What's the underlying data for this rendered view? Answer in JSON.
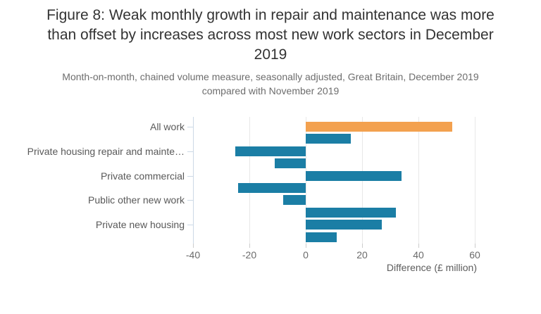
{
  "title": "Figure 8: Weak monthly growth in repair and maintenance was more than offset by increases across most new work sectors in December 2019",
  "subtitle": "Month-on-month, chained volume measure, seasonally adjusted, Great Britain, December 2019 compared with November 2019",
  "colors": {
    "highlight_bar": "#f3a14f",
    "bar": "#1b7ea5",
    "axis_line": "#ccd9e6",
    "gridline": "#e8e8e8",
    "title_text": "#333333",
    "subtitle_text": "#6d6d6d",
    "label_text": "#595959"
  },
  "chart_data": {
    "type": "bar",
    "orientation": "horizontal",
    "title": "Figure 8: Weak monthly growth in repair and maintenance was more than offset by increases across most new work sectors in December 2019",
    "subtitle": "Month-on-month, chained volume measure, seasonally adjusted, Great Britain, December 2019 compared with November 2019",
    "categories": [
      "All work",
      "",
      "Private housing repair and mainte…",
      "",
      "Private commercial",
      "",
      "Public other new work",
      "",
      "Private new housing",
      ""
    ],
    "values": [
      52,
      16,
      -25,
      -11,
      34,
      -24,
      -8,
      32,
      27,
      11
    ],
    "highlight_index": 0,
    "xlabel": "Difference (£ million)",
    "ylabel": "",
    "x_ticks": [
      -40,
      -20,
      0,
      20,
      40,
      60
    ],
    "xlim": [
      -40,
      65
    ],
    "grid": "vertical-on",
    "legend": "none"
  }
}
